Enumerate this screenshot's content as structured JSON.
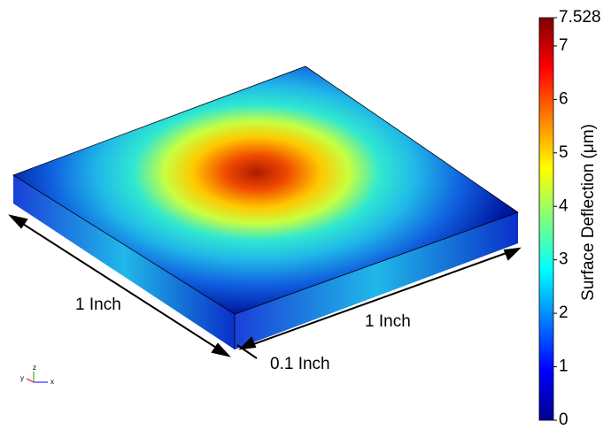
{
  "annotations": {
    "length_left": "1 Inch",
    "length_right": "1 Inch",
    "thickness": "0.1 Inch"
  },
  "axes_triad": {
    "x": "x",
    "y": "y",
    "z": "z"
  },
  "colorbar": {
    "label": "Surface Deflection (μm)",
    "lim": [
      0,
      7.528
    ],
    "ticks": [
      0,
      1,
      2,
      3,
      4,
      5,
      6,
      7,
      7.528
    ]
  }
}
